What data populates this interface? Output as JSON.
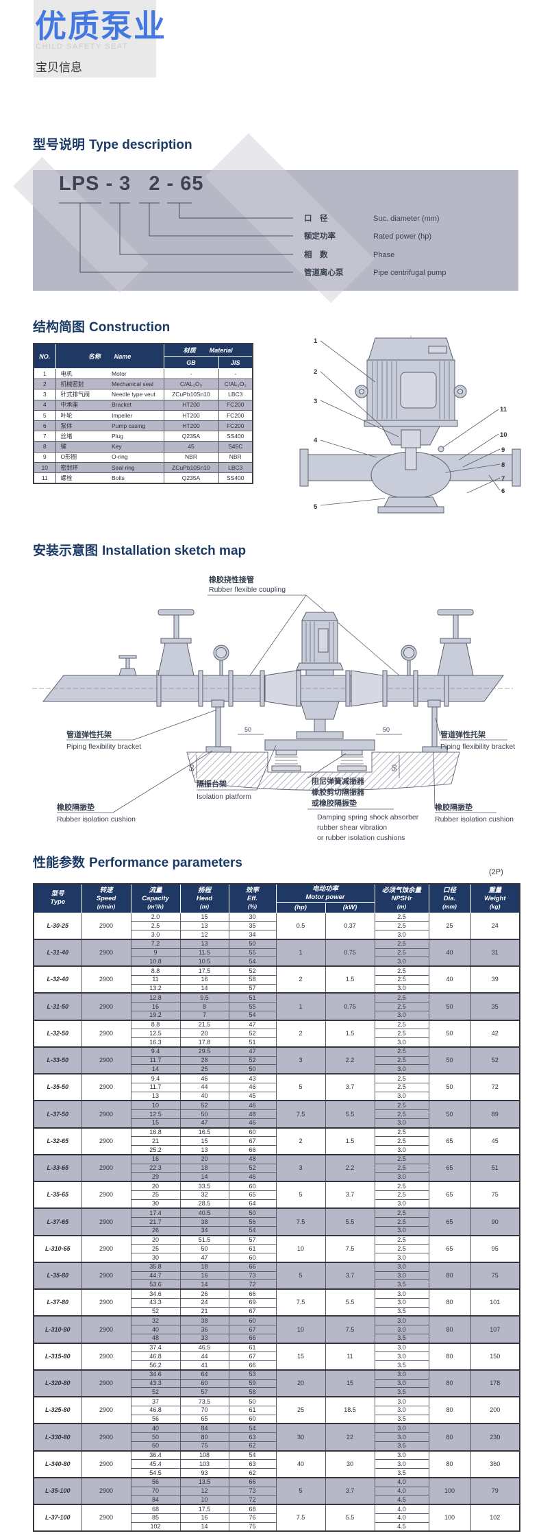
{
  "header": {
    "title": "优质泵业",
    "subtitle": "CHILD SAFETY SEAT",
    "tagline": "宝贝信息"
  },
  "sections": {
    "type_desc_cn": "型号说明",
    "type_desc_en": "Type description",
    "construction_cn": "结构简图",
    "construction_en": "Construction",
    "installation_cn": "安装示意图",
    "installation_en": "Installation sketch map",
    "performance_cn": "性能参数",
    "performance_en": "Performance parameters"
  },
  "type_model": {
    "code_left": "LPS - 3",
    "code_right": "2 - 65",
    "legend": [
      {
        "cn": "口　径",
        "en": "Suc. diameter (mm)"
      },
      {
        "cn": "额定功率",
        "en": "Rated power (hp)"
      },
      {
        "cn": "相　数",
        "en": "Phase"
      },
      {
        "cn": "管道离心泵",
        "en": "Pipe centrifugal pump"
      }
    ]
  },
  "construction_table": {
    "headers": {
      "no": "NO.",
      "name_cn": "名称",
      "name_en": "Name",
      "material_cn": "材质",
      "material_en": "Material",
      "gb": "GB",
      "jis": "JIS"
    },
    "rows": [
      {
        "no": "1",
        "cn": "电机",
        "en": "Motor",
        "gb": "-",
        "jis": "-"
      },
      {
        "no": "2",
        "cn": "机械密封",
        "en": "Mechanical seal",
        "gb": "C/AL₂O₃",
        "jis": "C/AL₂O₃"
      },
      {
        "no": "3",
        "cn": "针式排气阀",
        "en": "Needle type veut",
        "gb": "ZCuPb10Sn10",
        "jis": "LBC3"
      },
      {
        "no": "4",
        "cn": "中承座",
        "en": "Bracket",
        "gb": "HT200",
        "jis": "FC200"
      },
      {
        "no": "5",
        "cn": "叶轮",
        "en": "Impeller",
        "gb": "HT200",
        "jis": "FC200"
      },
      {
        "no": "6",
        "cn": "泵体",
        "en": "Pump casing",
        "gb": "HT200",
        "jis": "FC200"
      },
      {
        "no": "7",
        "cn": "丝堵",
        "en": "Plug",
        "gb": "Q235A",
        "jis": "SS400"
      },
      {
        "no": "8",
        "cn": "键",
        "en": "Key",
        "gb": "45",
        "jis": "S45C"
      },
      {
        "no": "9",
        "cn": "O形圈",
        "en": "O-ring",
        "gb": "NBR",
        "jis": "NBR"
      },
      {
        "no": "10",
        "cn": "密封环",
        "en": "Seal ring",
        "gb": "ZCuPb10Sn10",
        "jis": "LBC3"
      },
      {
        "no": "11",
        "cn": "螺栓",
        "en": "Bolts",
        "gb": "Q235A",
        "jis": "SS400"
      }
    ]
  },
  "construction_diagram": {
    "callouts": [
      "1",
      "2",
      "3",
      "4",
      "5",
      "6",
      "7",
      "8",
      "9",
      "10",
      "11"
    ]
  },
  "installation": {
    "coupling_cn": "橡胶挠性接管",
    "coupling_en": "Rubber flexible coupling",
    "bracket_cn": "管道弹性托架",
    "bracket_en": "Piping flexibility bracket",
    "cushion_cn": "橡胶隔振垫",
    "cushion_en": "Rubber isolation cushion",
    "platform_cn": "隔振台架",
    "platform_en": "Isolation platform",
    "damper_cn1": "阻尼弹簧减振器",
    "damper_cn2": "橡胶剪切隔振器",
    "damper_cn3": "或橡胶隔振垫",
    "damper_en1": "Damping spring shock absorber",
    "damper_en2": "rubber shear vibration",
    "damper_en3": "or rubber isolation cushions",
    "dim": "50"
  },
  "performance_table": {
    "note": "(2P)",
    "headers": {
      "type_cn": "型号",
      "type_en": "Type",
      "speed_cn": "转速",
      "speed_en": "Speed",
      "speed_unit": "(r/min)",
      "flow_cn": "流量",
      "flow_en": "Capacity",
      "flow_unit": "(m³/h)",
      "head_cn": "扬程",
      "head_en": "Head",
      "head_unit": "(m)",
      "eff_cn": "效率",
      "eff_en": "Eff.",
      "eff_unit": "(%)",
      "power_cn": "电动功率",
      "power_en": "Motor power",
      "hp": "(hp)",
      "kw": "(kW)",
      "npshr_cn": "必须气蚀余量",
      "npshr_en": "NPSHr",
      "npshr_unit": "(m)",
      "dia_cn": "口径",
      "dia_en": "Dia.",
      "dia_unit": "(mm)",
      "weight_cn": "重量",
      "weight_en": "Weight",
      "weight_unit": "(kg)"
    },
    "rows": [
      {
        "type": "L-30-25",
        "speed": "2900",
        "flow": [
          "2.0",
          "2.5",
          "3.0"
        ],
        "head": [
          "15",
          "13",
          "12"
        ],
        "eff": [
          "30",
          "35",
          "34"
        ],
        "hp": "0.5",
        "kw": "0.37",
        "npshr": [
          "2.5",
          "2.5",
          "3.0"
        ],
        "dia": "25",
        "weight": "24"
      },
      {
        "type": "L-31-40",
        "speed": "2900",
        "flow": [
          "7.2",
          "9",
          "10.8"
        ],
        "head": [
          "13",
          "11.5",
          "10.5"
        ],
        "eff": [
          "50",
          "55",
          "54"
        ],
        "hp": "1",
        "kw": "0.75",
        "npshr": [
          "2.5",
          "2.5",
          "3.0"
        ],
        "dia": "40",
        "weight": "31"
      },
      {
        "type": "L-32-40",
        "speed": "2900",
        "flow": [
          "8.8",
          "11",
          "13.2"
        ],
        "head": [
          "17.5",
          "16",
          "14"
        ],
        "eff": [
          "52",
          "58",
          "57"
        ],
        "hp": "2",
        "kw": "1.5",
        "npshr": [
          "2.5",
          "2.5",
          "3.0"
        ],
        "dia": "40",
        "weight": "39"
      },
      {
        "type": "L-31-50",
        "speed": "2900",
        "flow": [
          "12.8",
          "16",
          "19.2"
        ],
        "head": [
          "9.5",
          "8",
          "7"
        ],
        "eff": [
          "51",
          "55",
          "54"
        ],
        "hp": "1",
        "kw": "0.75",
        "npshr": [
          "2.5",
          "2.5",
          "3.0"
        ],
        "dia": "50",
        "weight": "35"
      },
      {
        "type": "L-32-50",
        "speed": "2900",
        "flow": [
          "8.8",
          "12.5",
          "16.3"
        ],
        "head": [
          "21.5",
          "20",
          "17.8"
        ],
        "eff": [
          "47",
          "52",
          "51"
        ],
        "hp": "2",
        "kw": "1.5",
        "npshr": [
          "2.5",
          "2.5",
          "3.0"
        ],
        "dia": "50",
        "weight": "42"
      },
      {
        "type": "L-33-50",
        "speed": "2900",
        "flow": [
          "9.4",
          "11.7",
          "14"
        ],
        "head": [
          "29.5",
          "28",
          "25"
        ],
        "eff": [
          "47",
          "52",
          "50"
        ],
        "hp": "3",
        "kw": "2.2",
        "npshr": [
          "2.5",
          "2.5",
          "3.0"
        ],
        "dia": "50",
        "weight": "52"
      },
      {
        "type": "L-35-50",
        "speed": "2900",
        "flow": [
          "9.4",
          "11.7",
          "13"
        ],
        "head": [
          "46",
          "44",
          "40"
        ],
        "eff": [
          "43",
          "46",
          "45"
        ],
        "hp": "5",
        "kw": "3.7",
        "npshr": [
          "2.5",
          "2.5",
          "3.0"
        ],
        "dia": "50",
        "weight": "72"
      },
      {
        "type": "L-37-50",
        "speed": "2900",
        "flow": [
          "10",
          "12.5",
          "15"
        ],
        "head": [
          "52",
          "50",
          "47"
        ],
        "eff": [
          "46",
          "48",
          "46"
        ],
        "hp": "7.5",
        "kw": "5.5",
        "npshr": [
          "2.5",
          "2.5",
          "3.0"
        ],
        "dia": "50",
        "weight": "89"
      },
      {
        "type": "L-32-65",
        "speed": "2900",
        "flow": [
          "16.8",
          "21",
          "25.2"
        ],
        "head": [
          "16.5",
          "15",
          "13"
        ],
        "eff": [
          "60",
          "67",
          "66"
        ],
        "hp": "2",
        "kw": "1.5",
        "npshr": [
          "2.5",
          "2.5",
          "3.0"
        ],
        "dia": "65",
        "weight": "45"
      },
      {
        "type": "L-33-65",
        "speed": "2900",
        "flow": [
          "16",
          "22.3",
          "29"
        ],
        "head": [
          "20",
          "18",
          "14"
        ],
        "eff": [
          "48",
          "52",
          "46"
        ],
        "hp": "3",
        "kw": "2.2",
        "npshr": [
          "2.5",
          "2.5",
          "3.0"
        ],
        "dia": "65",
        "weight": "51"
      },
      {
        "type": "L-35-65",
        "speed": "2900",
        "flow": [
          "20",
          "25",
          "30"
        ],
        "head": [
          "33.5",
          "32",
          "28.5"
        ],
        "eff": [
          "60",
          "65",
          "64"
        ],
        "hp": "5",
        "kw": "3.7",
        "npshr": [
          "2.5",
          "2.5",
          "3.0"
        ],
        "dia": "65",
        "weight": "75"
      },
      {
        "type": "L-37-65",
        "speed": "2900",
        "flow": [
          "17.4",
          "21.7",
          "26"
        ],
        "head": [
          "40.5",
          "38",
          "34"
        ],
        "eff": [
          "50",
          "56",
          "54"
        ],
        "hp": "7.5",
        "kw": "5.5",
        "npshr": [
          "2.5",
          "2.5",
          "3.0"
        ],
        "dia": "65",
        "weight": "90"
      },
      {
        "type": "L-310-65",
        "speed": "2900",
        "flow": [
          "20",
          "25",
          "30"
        ],
        "head": [
          "51.5",
          "50",
          "47"
        ],
        "eff": [
          "57",
          "61",
          "60"
        ],
        "hp": "10",
        "kw": "7.5",
        "npshr": [
          "2.5",
          "2.5",
          "3.0"
        ],
        "dia": "65",
        "weight": "95"
      },
      {
        "type": "L-35-80",
        "speed": "2900",
        "flow": [
          "35.8",
          "44.7",
          "53.6"
        ],
        "head": [
          "18",
          "16",
          "14"
        ],
        "eff": [
          "66",
          "73",
          "72"
        ],
        "hp": "5",
        "kw": "3.7",
        "npshr": [
          "3.0",
          "3.0",
          "3.5"
        ],
        "dia": "80",
        "weight": "75"
      },
      {
        "type": "L-37-80",
        "speed": "2900",
        "flow": [
          "34.6",
          "43.3",
          "52"
        ],
        "head": [
          "26",
          "24",
          "21"
        ],
        "eff": [
          "66",
          "69",
          "67"
        ],
        "hp": "7.5",
        "kw": "5.5",
        "npshr": [
          "3.0",
          "3.0",
          "3.5"
        ],
        "dia": "80",
        "weight": "101"
      },
      {
        "type": "L-310-80",
        "speed": "2900",
        "flow": [
          "32",
          "40",
          "48"
        ],
        "head": [
          "38",
          "36",
          "33"
        ],
        "eff": [
          "60",
          "67",
          "66"
        ],
        "hp": "10",
        "kw": "7.5",
        "npshr": [
          "3.0",
          "3.0",
          "3.5"
        ],
        "dia": "80",
        "weight": "107"
      },
      {
        "type": "L-315-80",
        "speed": "2900",
        "flow": [
          "37.4",
          "46.8",
          "56.2"
        ],
        "head": [
          "46.5",
          "44",
          "41"
        ],
        "eff": [
          "61",
          "67",
          "66"
        ],
        "hp": "15",
        "kw": "11",
        "npshr": [
          "3.0",
          "3.0",
          "3.5"
        ],
        "dia": "80",
        "weight": "150"
      },
      {
        "type": "L-320-80",
        "speed": "2900",
        "flow": [
          "34.6",
          "43.3",
          "52"
        ],
        "head": [
          "64",
          "60",
          "57"
        ],
        "eff": [
          "53",
          "59",
          "58"
        ],
        "hp": "20",
        "kw": "15",
        "npshr": [
          "3.0",
          "3.0",
          "3.5"
        ],
        "dia": "80",
        "weight": "178"
      },
      {
        "type": "L-325-80",
        "speed": "2900",
        "flow": [
          "37",
          "46.8",
          "56"
        ],
        "head": [
          "73.5",
          "70",
          "65"
        ],
        "eff": [
          "50",
          "61",
          "60"
        ],
        "hp": "25",
        "kw": "18.5",
        "npshr": [
          "3.0",
          "3.0",
          "3.5"
        ],
        "dia": "80",
        "weight": "200"
      },
      {
        "type": "L-330-80",
        "speed": "2900",
        "flow": [
          "40",
          "50",
          "60"
        ],
        "head": [
          "84",
          "80",
          "75"
        ],
        "eff": [
          "54",
          "63",
          "62"
        ],
        "hp": "30",
        "kw": "22",
        "npshr": [
          "3.0",
          "3.0",
          "3.5"
        ],
        "dia": "80",
        "weight": "230"
      },
      {
        "type": "L-340-80",
        "speed": "2900",
        "flow": [
          "36.4",
          "45.4",
          "54.5"
        ],
        "head": [
          "108",
          "103",
          "93"
        ],
        "eff": [
          "54",
          "63",
          "62"
        ],
        "hp": "40",
        "kw": "30",
        "npshr": [
          "3.0",
          "3.0",
          "3.5"
        ],
        "dia": "80",
        "weight": "360"
      },
      {
        "type": "L-35-100",
        "speed": "2900",
        "flow": [
          "56",
          "70",
          "84"
        ],
        "head": [
          "13.5",
          "12",
          "10"
        ],
        "eff": [
          "66",
          "73",
          "72"
        ],
        "hp": "5",
        "kw": "3.7",
        "npshr": [
          "4.0",
          "4.0",
          "4.5"
        ],
        "dia": "100",
        "weight": "79"
      },
      {
        "type": "L-37-100",
        "speed": "2900",
        "flow": [
          "68",
          "85",
          "102"
        ],
        "head": [
          "17.5",
          "16",
          "14"
        ],
        "eff": [
          "68",
          "76",
          "75"
        ],
        "hp": "7.5",
        "kw": "5.5",
        "npshr": [
          "4.0",
          "4.0",
          "4.5"
        ],
        "dia": "100",
        "weight": "102"
      }
    ]
  }
}
